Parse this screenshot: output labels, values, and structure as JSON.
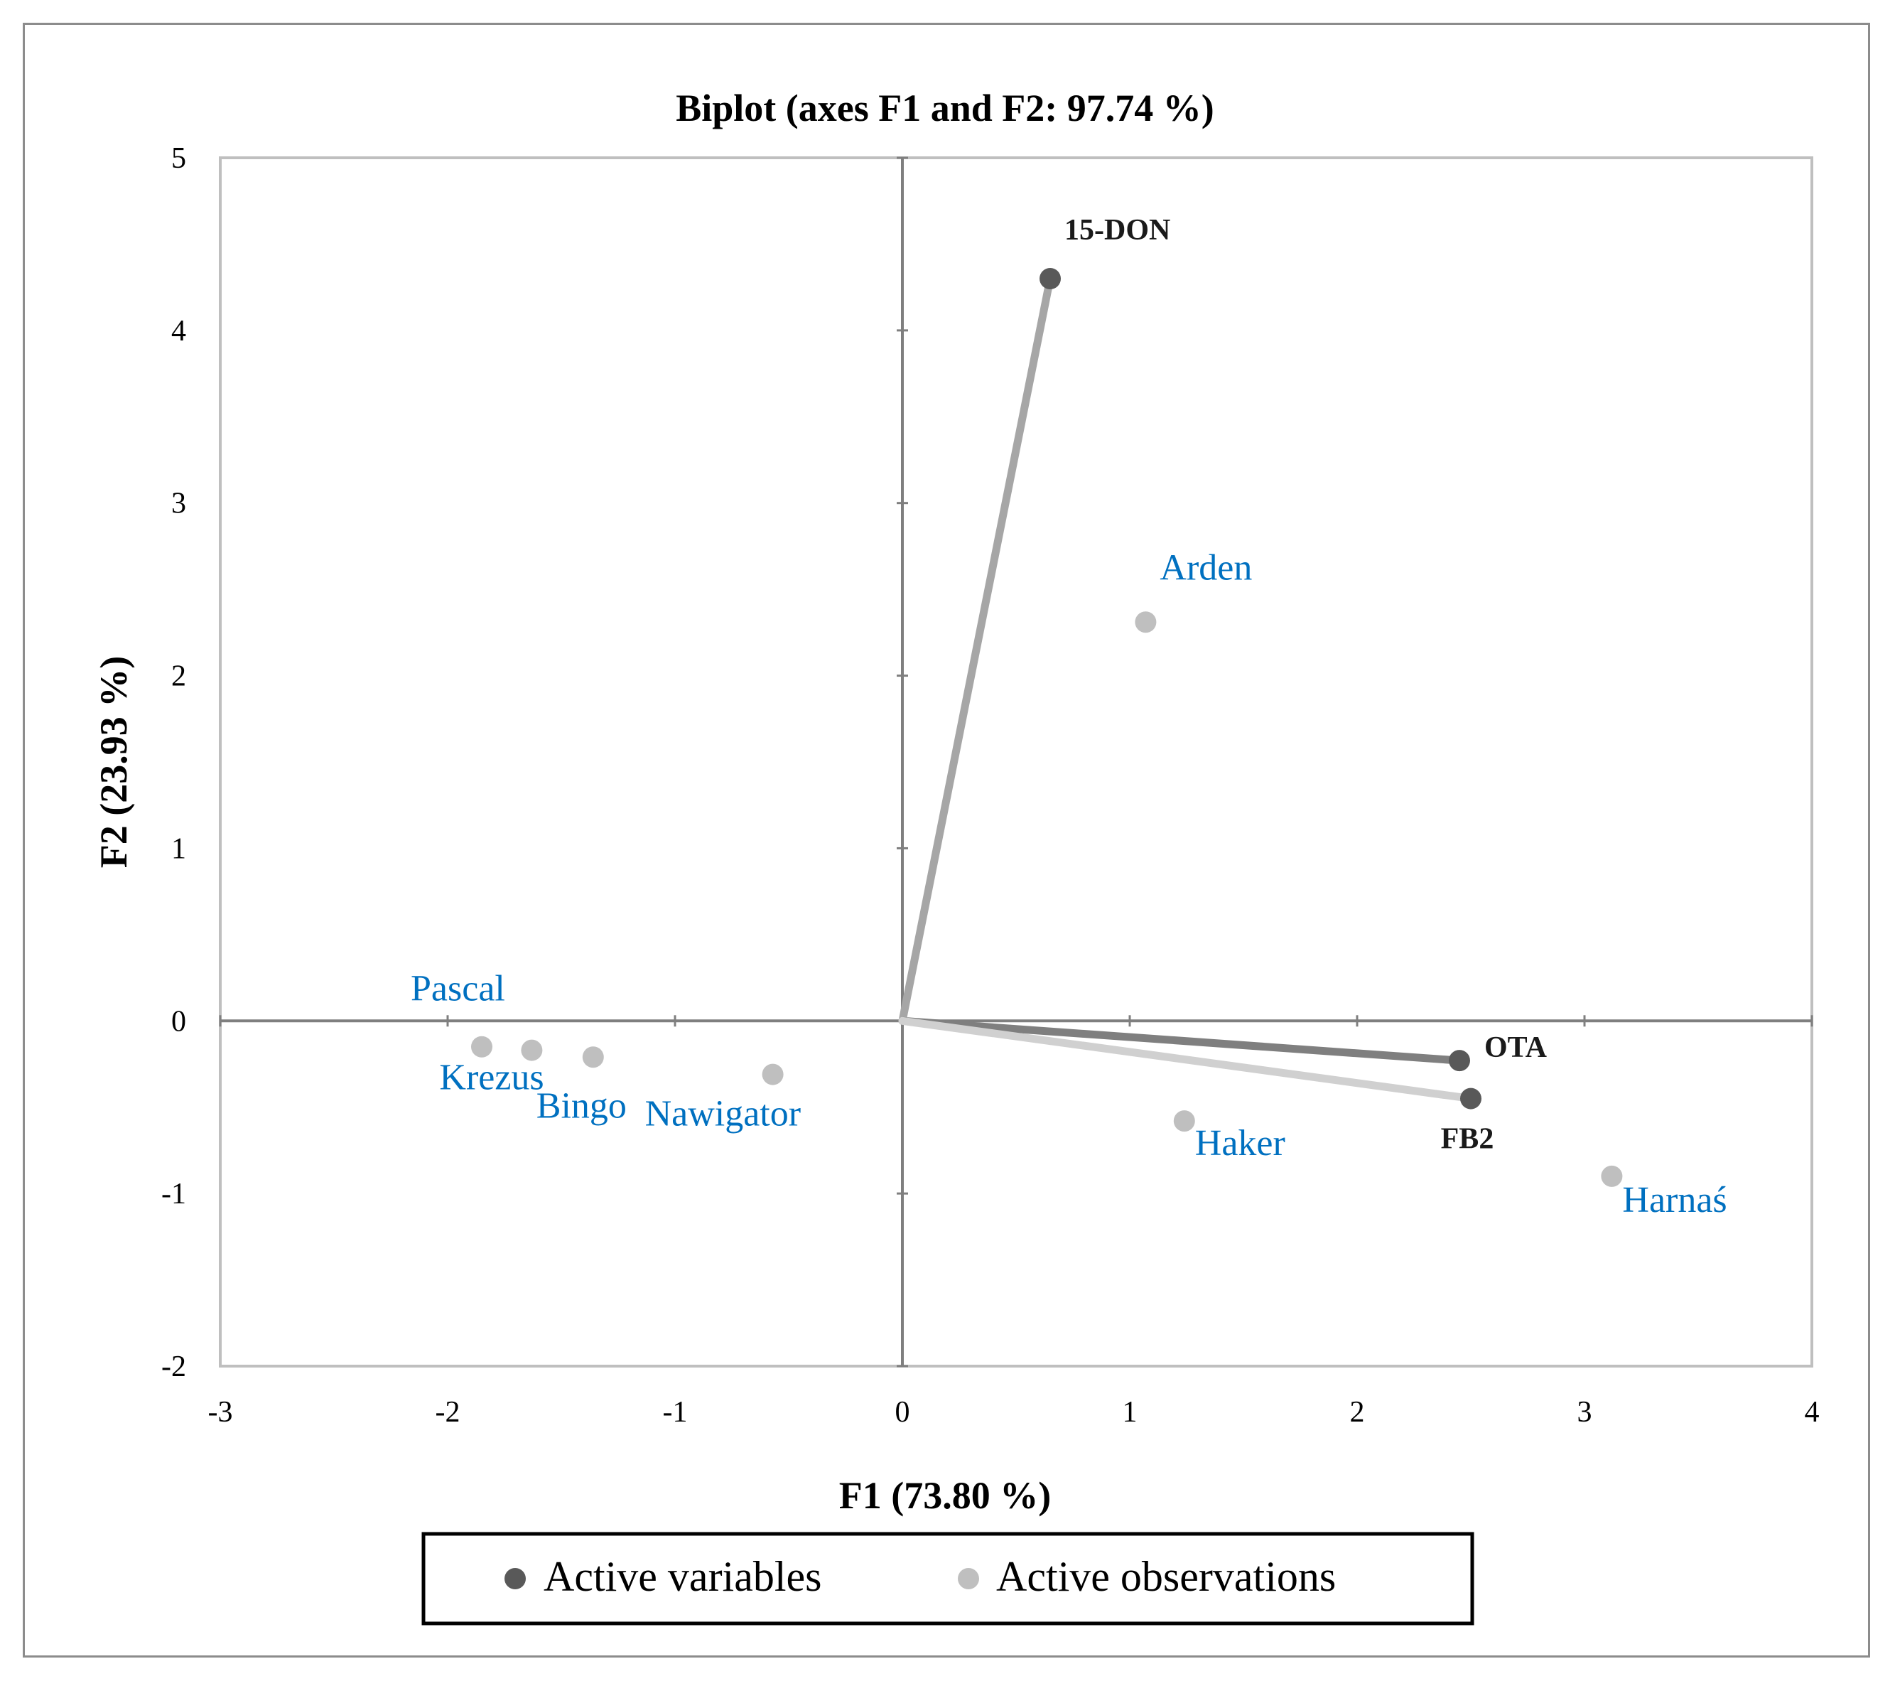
{
  "chart_data": {
    "type": "scatter",
    "title": "Biplot (axes F1 and F2: 97.74 %)",
    "xlabel": "F1 (73.80 %)",
    "ylabel": "F2 (23.93 %)",
    "xlim": [
      -3,
      4
    ],
    "ylim": [
      -2,
      5
    ],
    "xticks": [
      -3,
      -2,
      -1,
      0,
      1,
      2,
      3,
      4
    ],
    "yticks": [
      -2,
      -1,
      0,
      1,
      2,
      3,
      4,
      5
    ],
    "grid": false,
    "legend_position": "bottom",
    "series": [
      {
        "name": "Active variables",
        "color": "#595959",
        "label_color": "#1a1a1a",
        "points": [
          {
            "label": "15-DON",
            "x": 0.65,
            "y": 4.3
          },
          {
            "label": "OTA",
            "x": 2.45,
            "y": -0.23
          },
          {
            "label": "FB2",
            "x": 2.5,
            "y": -0.45
          }
        ]
      },
      {
        "name": "Active observations",
        "color": "#bfbfbf",
        "label_color": "#0070c0",
        "points": [
          {
            "label": "Pascal",
            "x": -1.85,
            "y": -0.15
          },
          {
            "label": "Krezus",
            "x": -1.63,
            "y": -0.17
          },
          {
            "label": "Bingo",
            "x": -1.36,
            "y": -0.21
          },
          {
            "label": "Nawigator",
            "x": -0.57,
            "y": -0.31
          },
          {
            "label": "Arden",
            "x": 1.07,
            "y": 2.31
          },
          {
            "label": "Haker",
            "x": 1.24,
            "y": -0.58
          },
          {
            "label": "Harnaś",
            "x": 3.12,
            "y": -0.9
          }
        ]
      }
    ],
    "vectors": [
      {
        "to": "15-DON",
        "color": "#a6a6a6"
      },
      {
        "to": "OTA",
        "color": "#7f7f7f"
      },
      {
        "to": "FB2",
        "color": "#d0d0d0"
      }
    ]
  }
}
